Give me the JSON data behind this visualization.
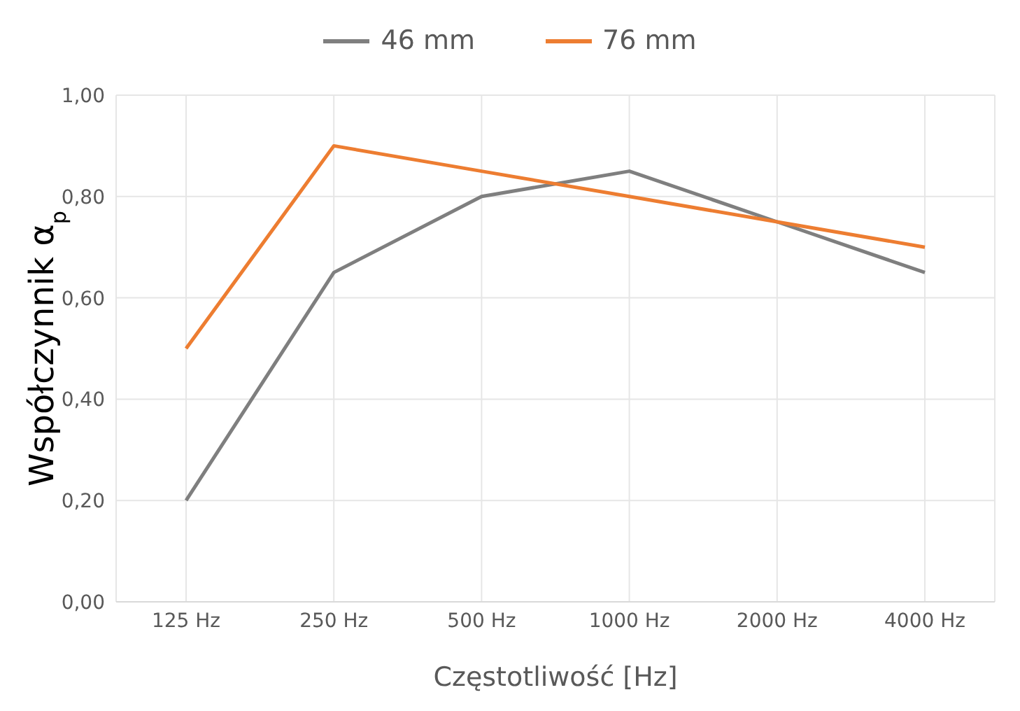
{
  "chart_data": {
    "type": "line",
    "xlabel": "Częstotliwość [Hz]",
    "ylabel": "Współczynnik α$_{p}$",
    "categories": [
      "125 Hz",
      "250 Hz",
      "500 Hz",
      "1000 Hz",
      "2000 Hz",
      "4000 Hz"
    ],
    "series": [
      {
        "name": "46 mm",
        "color": "#7f7f7f",
        "values": [
          0.2,
          0.65,
          0.8,
          0.85,
          0.75,
          0.65
        ]
      },
      {
        "name": "76 mm",
        "color": "#ed7d31",
        "values": [
          0.5,
          0.9,
          0.85,
          0.8,
          0.75,
          0.7
        ]
      }
    ],
    "ylim": [
      0,
      1
    ],
    "yticks": [
      {
        "value": 0,
        "label": "0,00"
      },
      {
        "value": 0.2,
        "label": "0,20"
      },
      {
        "value": 0.4,
        "label": "0,40"
      },
      {
        "value": 0.6,
        "label": "0,60"
      },
      {
        "value": 0.8,
        "label": "0,80"
      },
      {
        "value": 1,
        "label": "1,00"
      }
    ],
    "grid": true,
    "legend": "top",
    "marker": "none",
    "line_style": "solid"
  }
}
